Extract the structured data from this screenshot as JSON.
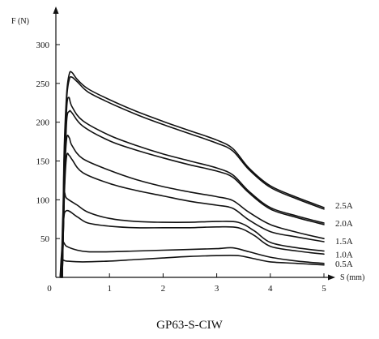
{
  "chart_data": {
    "type": "line",
    "title": "GP63-S-CIW",
    "xlabel": "S (mm)",
    "ylabel": "F (N)",
    "xlim": [
      0,
      5
    ],
    "ylim": [
      0,
      300
    ],
    "x_ticks": [
      "0",
      "1",
      "2",
      "3",
      "4",
      "5"
    ],
    "y_ticks": [
      "50",
      "100",
      "150",
      "200",
      "250",
      "300"
    ],
    "grid": false,
    "series_labels_position": "right-end",
    "series": [
      {
        "name": "2.5A",
        "points": [
          [
            0.12,
            0
          ],
          [
            0.15,
            150
          ],
          [
            0.2,
            235
          ],
          [
            0.25,
            262
          ],
          [
            0.3,
            264
          ],
          [
            0.4,
            255
          ],
          [
            0.6,
            243
          ],
          [
            1,
            229
          ],
          [
            1.5,
            214
          ],
          [
            2,
            201
          ],
          [
            2.5,
            189
          ],
          [
            3,
            177
          ],
          [
            3.3,
            166
          ],
          [
            3.6,
            141
          ],
          [
            4,
            118
          ],
          [
            4.5,
            103
          ],
          [
            5,
            90
          ]
        ]
      },
      {
        "name": "2.5A",
        "points": [
          [
            0.12,
            0
          ],
          [
            0.15,
            140
          ],
          [
            0.2,
            228
          ],
          [
            0.25,
            255
          ],
          [
            0.3,
            258
          ],
          [
            0.4,
            252
          ],
          [
            0.6,
            239
          ],
          [
            1,
            225
          ],
          [
            1.5,
            210
          ],
          [
            2,
            197
          ],
          [
            2.5,
            185
          ],
          [
            3,
            173
          ],
          [
            3.3,
            163
          ],
          [
            3.6,
            139
          ],
          [
            4,
            116
          ],
          [
            4.5,
            101
          ],
          [
            5,
            88
          ]
        ]
      },
      {
        "name": "2.0A",
        "points": [
          [
            0.12,
            0
          ],
          [
            0.16,
            120
          ],
          [
            0.2,
            215
          ],
          [
            0.24,
            232
          ],
          [
            0.3,
            220
          ],
          [
            0.5,
            202
          ],
          [
            1,
            183
          ],
          [
            1.5,
            170
          ],
          [
            2,
            159
          ],
          [
            2.5,
            150
          ],
          [
            3,
            141
          ],
          [
            3.3,
            132
          ],
          [
            3.6,
            111
          ],
          [
            4,
            90
          ],
          [
            4.5,
            79
          ],
          [
            5,
            70
          ]
        ]
      },
      {
        "name": "2.0A",
        "points": [
          [
            0.12,
            0
          ],
          [
            0.16,
            115
          ],
          [
            0.2,
            200
          ],
          [
            0.25,
            214
          ],
          [
            0.3,
            212
          ],
          [
            0.5,
            195
          ],
          [
            1,
            176
          ],
          [
            1.5,
            164
          ],
          [
            2,
            154
          ],
          [
            2.5,
            145
          ],
          [
            3,
            137
          ],
          [
            3.3,
            129
          ],
          [
            3.6,
            109
          ],
          [
            4,
            88
          ],
          [
            4.5,
            77
          ],
          [
            5,
            68
          ]
        ]
      },
      {
        "name": "1.5A",
        "points": [
          [
            0.12,
            0
          ],
          [
            0.16,
            110
          ],
          [
            0.2,
            156
          ],
          [
            0.25,
            157
          ],
          [
            0.3,
            152
          ],
          [
            0.5,
            135
          ],
          [
            1,
            121
          ],
          [
            1.5,
            112
          ],
          [
            2,
            105
          ],
          [
            2.5,
            98
          ],
          [
            3,
            93
          ],
          [
            3.3,
            89
          ],
          [
            3.6,
            74
          ],
          [
            4,
            59
          ],
          [
            4.5,
            52
          ],
          [
            5,
            46
          ]
        ]
      },
      {
        "name": "1.5A",
        "points": [
          [
            0.12,
            0
          ],
          [
            0.16,
            125
          ],
          [
            0.2,
            178
          ],
          [
            0.25,
            180
          ],
          [
            0.3,
            170
          ],
          [
            0.5,
            153
          ],
          [
            1,
            138
          ],
          [
            1.5,
            126
          ],
          [
            2,
            117
          ],
          [
            2.5,
            110
          ],
          [
            3,
            104
          ],
          [
            3.3,
            99
          ],
          [
            3.6,
            84
          ],
          [
            4,
            68
          ],
          [
            4.5,
            58
          ],
          [
            5,
            50
          ]
        ]
      },
      {
        "name": "1.0A",
        "points": [
          [
            0.1,
            0
          ],
          [
            0.13,
            80
          ],
          [
            0.16,
            108
          ],
          [
            0.2,
            102
          ],
          [
            0.4,
            93
          ],
          [
            0.6,
            84
          ],
          [
            1,
            76
          ],
          [
            1.5,
            72
          ],
          [
            2,
            71
          ],
          [
            2.5,
            71
          ],
          [
            3,
            72
          ],
          [
            3.4,
            71
          ],
          [
            3.7,
            60
          ],
          [
            4,
            45
          ],
          [
            4.5,
            38
          ],
          [
            5,
            34
          ]
        ]
      },
      {
        "name": "1.0A",
        "points": [
          [
            0.1,
            0
          ],
          [
            0.14,
            70
          ],
          [
            0.2,
            86
          ],
          [
            0.4,
            78
          ],
          [
            0.6,
            70
          ],
          [
            1,
            66
          ],
          [
            1.5,
            64
          ],
          [
            2,
            64
          ],
          [
            2.5,
            64
          ],
          [
            3,
            65
          ],
          [
            3.4,
            64
          ],
          [
            3.7,
            54
          ],
          [
            4,
            40
          ],
          [
            4.5,
            34
          ],
          [
            5,
            30
          ]
        ]
      },
      {
        "name": "0.5A",
        "points": [
          [
            0.08,
            0
          ],
          [
            0.1,
            25
          ],
          [
            0.13,
            45
          ],
          [
            0.2,
            40
          ],
          [
            0.4,
            35
          ],
          [
            0.6,
            33
          ],
          [
            1,
            33
          ],
          [
            1.5,
            34
          ],
          [
            2,
            35
          ],
          [
            2.5,
            36
          ],
          [
            3,
            37
          ],
          [
            3.3,
            38
          ],
          [
            3.6,
            33
          ],
          [
            4,
            26
          ],
          [
            4.5,
            21
          ],
          [
            5,
            18
          ]
        ]
      },
      {
        "name": "0.5A",
        "points": [
          [
            0.08,
            0
          ],
          [
            0.1,
            15
          ],
          [
            0.13,
            22
          ],
          [
            0.2,
            21
          ],
          [
            0.5,
            20
          ],
          [
            1,
            21
          ],
          [
            1.5,
            23
          ],
          [
            2,
            25
          ],
          [
            2.5,
            27
          ],
          [
            3,
            28
          ],
          [
            3.4,
            28
          ],
          [
            3.7,
            24
          ],
          [
            4,
            20
          ],
          [
            4.5,
            18
          ],
          [
            5,
            16
          ]
        ]
      }
    ],
    "end_labels": [
      "2.5A",
      "2.0A",
      "1.5A",
      "1.0A",
      "0.5A"
    ]
  }
}
